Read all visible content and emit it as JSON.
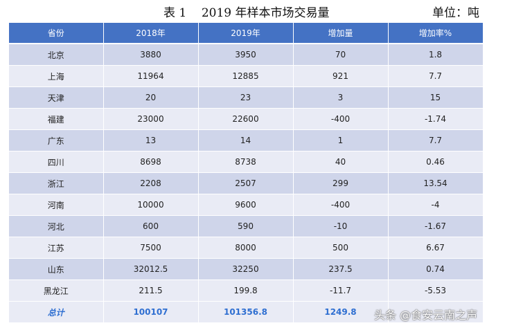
{
  "caption": {
    "title": "表 1    2019 年样本市场交易量",
    "unit": "单位：吨"
  },
  "table": {
    "headers": [
      "省份",
      "2018年",
      "2019年",
      "增加量",
      "增加率%"
    ],
    "rows": [
      [
        "北京",
        "3880",
        "3950",
        "70",
        "1.8"
      ],
      [
        "上海",
        "11964",
        "12885",
        "921",
        "7.7"
      ],
      [
        "天津",
        "20",
        "23",
        "3",
        "15"
      ],
      [
        "福建",
        "23000",
        "22600",
        "-400",
        "-1.74"
      ],
      [
        "广东",
        "13",
        "14",
        "1",
        "7.7"
      ],
      [
        "四川",
        "8698",
        "8738",
        "40",
        "0.46"
      ],
      [
        "浙江",
        "2208",
        "2507",
        "299",
        "13.54"
      ],
      [
        "河南",
        "10000",
        "9600",
        "-400",
        "-4"
      ],
      [
        "河北",
        "600",
        "590",
        "-10",
        "-1.67"
      ],
      [
        "江苏",
        "7500",
        "8000",
        "500",
        "6.67"
      ],
      [
        "山东",
        "32012.5",
        "32250",
        "237.5",
        "0.74"
      ],
      [
        "黑龙江",
        "211.5",
        "199.8",
        "-11.7",
        "-5.53"
      ]
    ],
    "total": [
      "总计",
      "100107",
      "101356.8",
      "1249.8",
      ""
    ]
  },
  "watermark": "头条 @食安云南之声",
  "colors": {
    "header_bg": "#4472c4",
    "row_dark": "#cfd5ea",
    "row_light": "#e9ebf5",
    "total_text": "#2f6fd1"
  }
}
